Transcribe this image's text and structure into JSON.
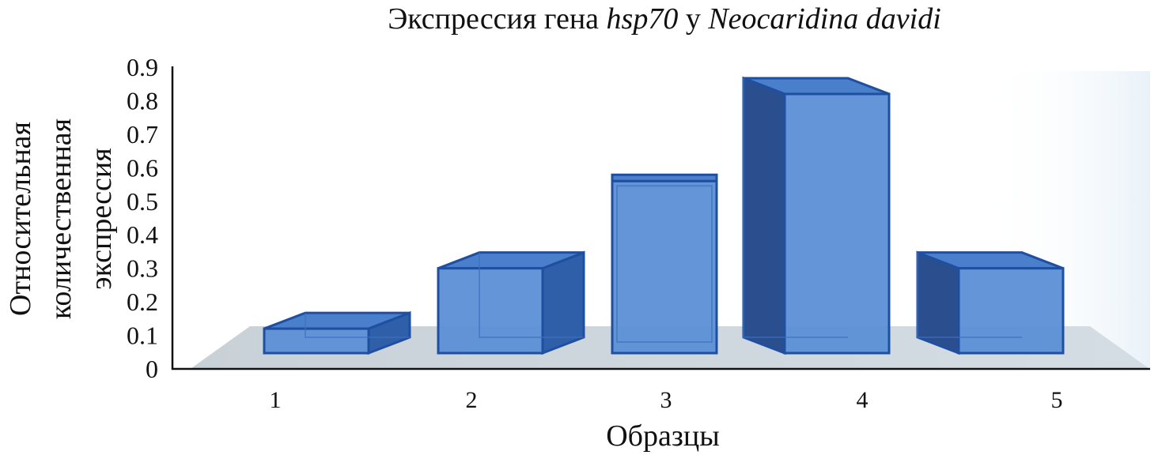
{
  "chart_data": {
    "type": "bar",
    "title_parts": [
      {
        "text": "Экспрессия гена ",
        "italic": false
      },
      {
        "text": "hsp70",
        "italic": true
      },
      {
        "text": " у ",
        "italic": false
      },
      {
        "text": "Neocaridina davidi",
        "italic": true
      }
    ],
    "categories": [
      "1",
      "2",
      "3",
      "4",
      "5"
    ],
    "values": [
      0.12,
      0.3,
      0.56,
      0.82,
      0.3
    ],
    "ylabel_lines": [
      "Относительная",
      "количественная",
      "экспрессия"
    ],
    "xlabel": "Образцы",
    "ylim": [
      0,
      0.9
    ],
    "yticks": [
      "0",
      "0.1",
      "0.2",
      "0.3",
      "0.4",
      "0.5",
      "0.6",
      "0.7",
      "0.8",
      "0.9"
    ],
    "bar_color": "#5b8fd6",
    "grid": false,
    "style": "3d"
  }
}
